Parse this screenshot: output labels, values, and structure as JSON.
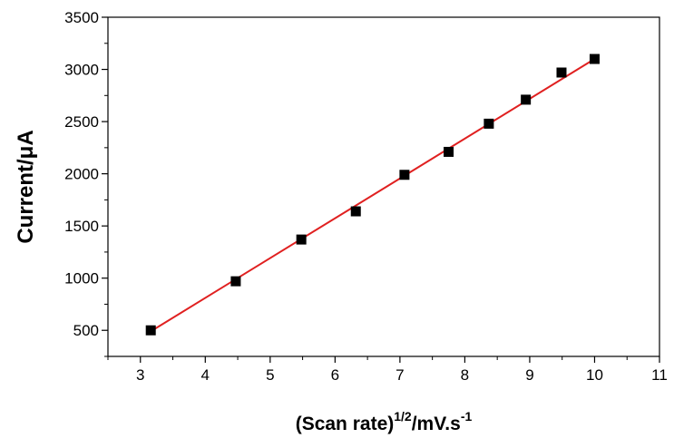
{
  "chart_data": {
    "type": "scatter",
    "title": "",
    "xlabel": {
      "main": "(Scan rate)",
      "sup1": "1/2",
      "mid": "/mV.s",
      "sup2": "-1"
    },
    "ylabel": "Current/μA",
    "xlim": [
      2.5,
      11
    ],
    "ylim": [
      250,
      3500
    ],
    "xticks": [
      3,
      4,
      5,
      6,
      7,
      8,
      9,
      10,
      11
    ],
    "yticks": [
      500,
      1000,
      1500,
      2000,
      2500,
      3000,
      3500
    ],
    "grid": false,
    "legend": "none",
    "series": [
      {
        "type": "scatter",
        "marker": "square",
        "color": "#000000",
        "x": [
          3.16,
          4.47,
          5.48,
          6.32,
          7.07,
          7.75,
          8.37,
          8.94,
          9.49,
          10.0
        ],
        "y": [
          500,
          970,
          1370,
          1640,
          1990,
          2210,
          2480,
          2710,
          2970,
          3100
        ]
      },
      {
        "type": "line",
        "color": "#e02020",
        "x": [
          3.16,
          10.0
        ],
        "y": [
          490,
          3100
        ]
      }
    ]
  }
}
